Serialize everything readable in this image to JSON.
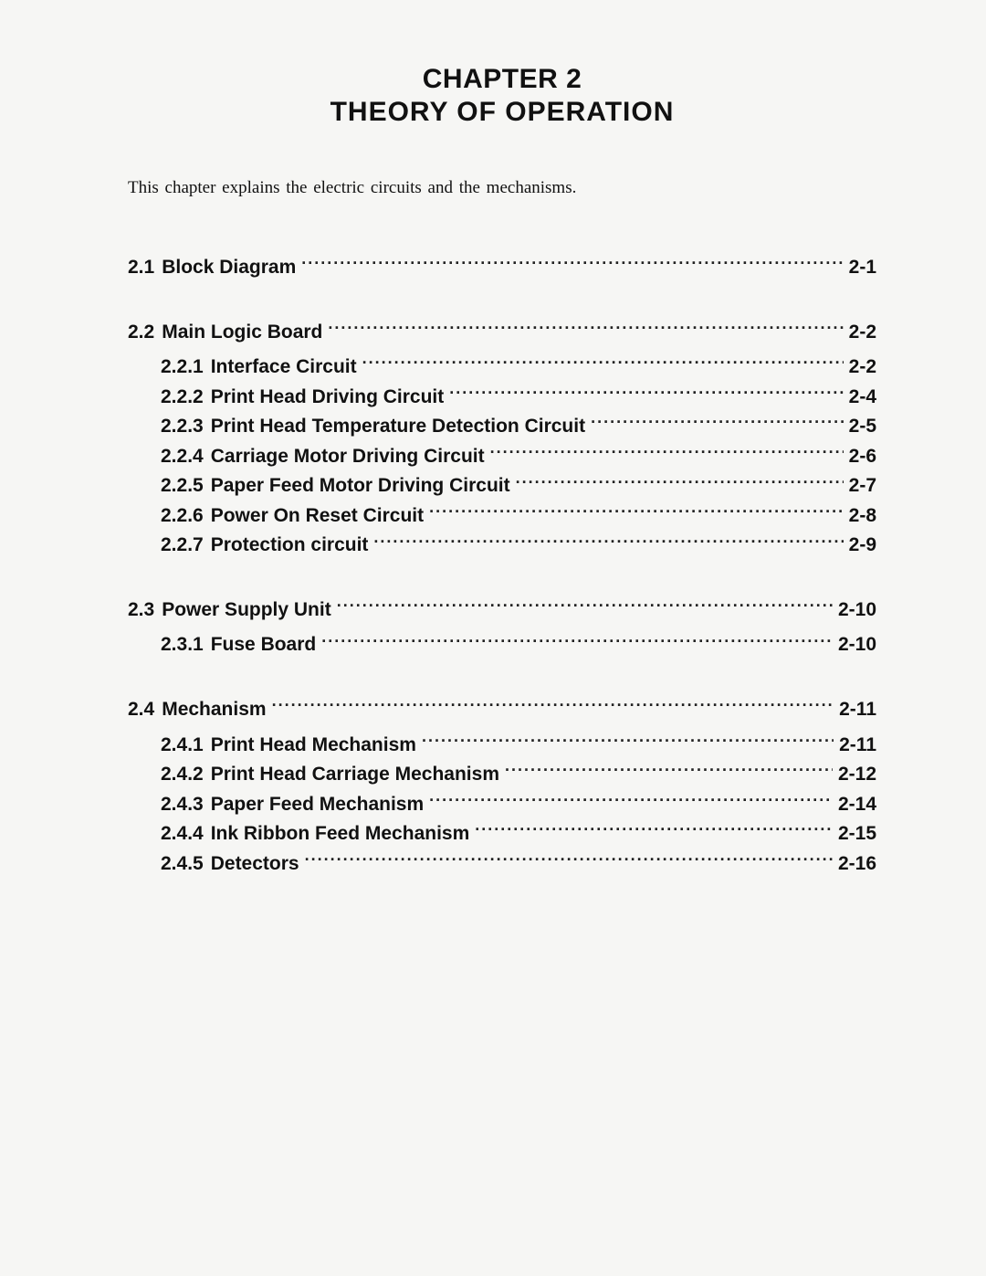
{
  "chapter": {
    "number_label": "CHAPTER 2",
    "title": "THEORY OF OPERATION",
    "intro": "This chapter explains the electric circuits and the mechanisms."
  },
  "toc": [
    {
      "num": "2.1",
      "title": "Block Diagram",
      "page": "2-1",
      "subs": []
    },
    {
      "num": "2.2",
      "title": "Main Logic Board",
      "page": "2-2",
      "subs": [
        {
          "num": "2.2.1",
          "title": "Interface Circuit",
          "page": "2-2"
        },
        {
          "num": "2.2.2",
          "title": "Print Head Driving Circuit",
          "page": "2-4"
        },
        {
          "num": "2.2.3",
          "title": "Print Head Temperature Detection Circuit",
          "page": "2-5"
        },
        {
          "num": "2.2.4",
          "title": "Carriage Motor Driving Circuit",
          "page": "2-6"
        },
        {
          "num": "2.2.5",
          "title": "Paper Feed Motor Driving Circuit",
          "page": "2-7"
        },
        {
          "num": "2.2.6",
          "title": "Power On Reset Circuit",
          "page": "2-8"
        },
        {
          "num": "2.2.7",
          "title": "Protection circuit",
          "page": "2-9"
        }
      ]
    },
    {
      "num": "2.3",
      "title": "Power Supply Unit",
      "page": "2-10",
      "subs": [
        {
          "num": "2.3.1",
          "title": "Fuse Board",
          "page": "2-10"
        }
      ]
    },
    {
      "num": "2.4",
      "title": "Mechanism",
      "page": "2-11",
      "subs": [
        {
          "num": "2.4.1",
          "title": "Print Head Mechanism",
          "page": "2-11"
        },
        {
          "num": "2.4.2",
          "title": "Print Head Carriage Mechanism",
          "page": "2-12"
        },
        {
          "num": "2.4.3",
          "title": "Paper Feed Mechanism",
          "page": "2-14"
        },
        {
          "num": "2.4.4",
          "title": "Ink Ribbon Feed Mechanism",
          "page": "2-15"
        },
        {
          "num": "2.4.5",
          "title": "Detectors",
          "page": "2-16"
        }
      ]
    }
  ]
}
